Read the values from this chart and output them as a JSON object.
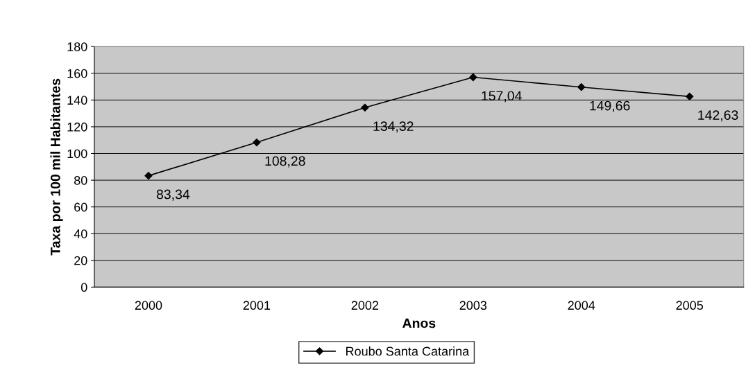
{
  "chart_data": {
    "type": "line",
    "xlabel": "Anos",
    "ylabel": "Taxa por 100 mil Habitantes",
    "categories": [
      "2000",
      "2001",
      "2002",
      "2003",
      "2004",
      "2005"
    ],
    "series": [
      {
        "name": "Roubo Santa Catarina",
        "color": "#000000",
        "values": [
          83.34,
          108.28,
          134.32,
          157.04,
          149.66,
          142.63
        ]
      }
    ],
    "value_labels": [
      "83,34",
      "108,28",
      "134,32",
      "157,04",
      "149,66",
      "142,63"
    ],
    "ylim": [
      0,
      180
    ],
    "yticks": [
      0,
      20,
      40,
      60,
      80,
      100,
      120,
      140,
      160,
      180
    ],
    "grid": "y",
    "legend": "bottom",
    "marker": "diamond",
    "line_style": "solid"
  }
}
